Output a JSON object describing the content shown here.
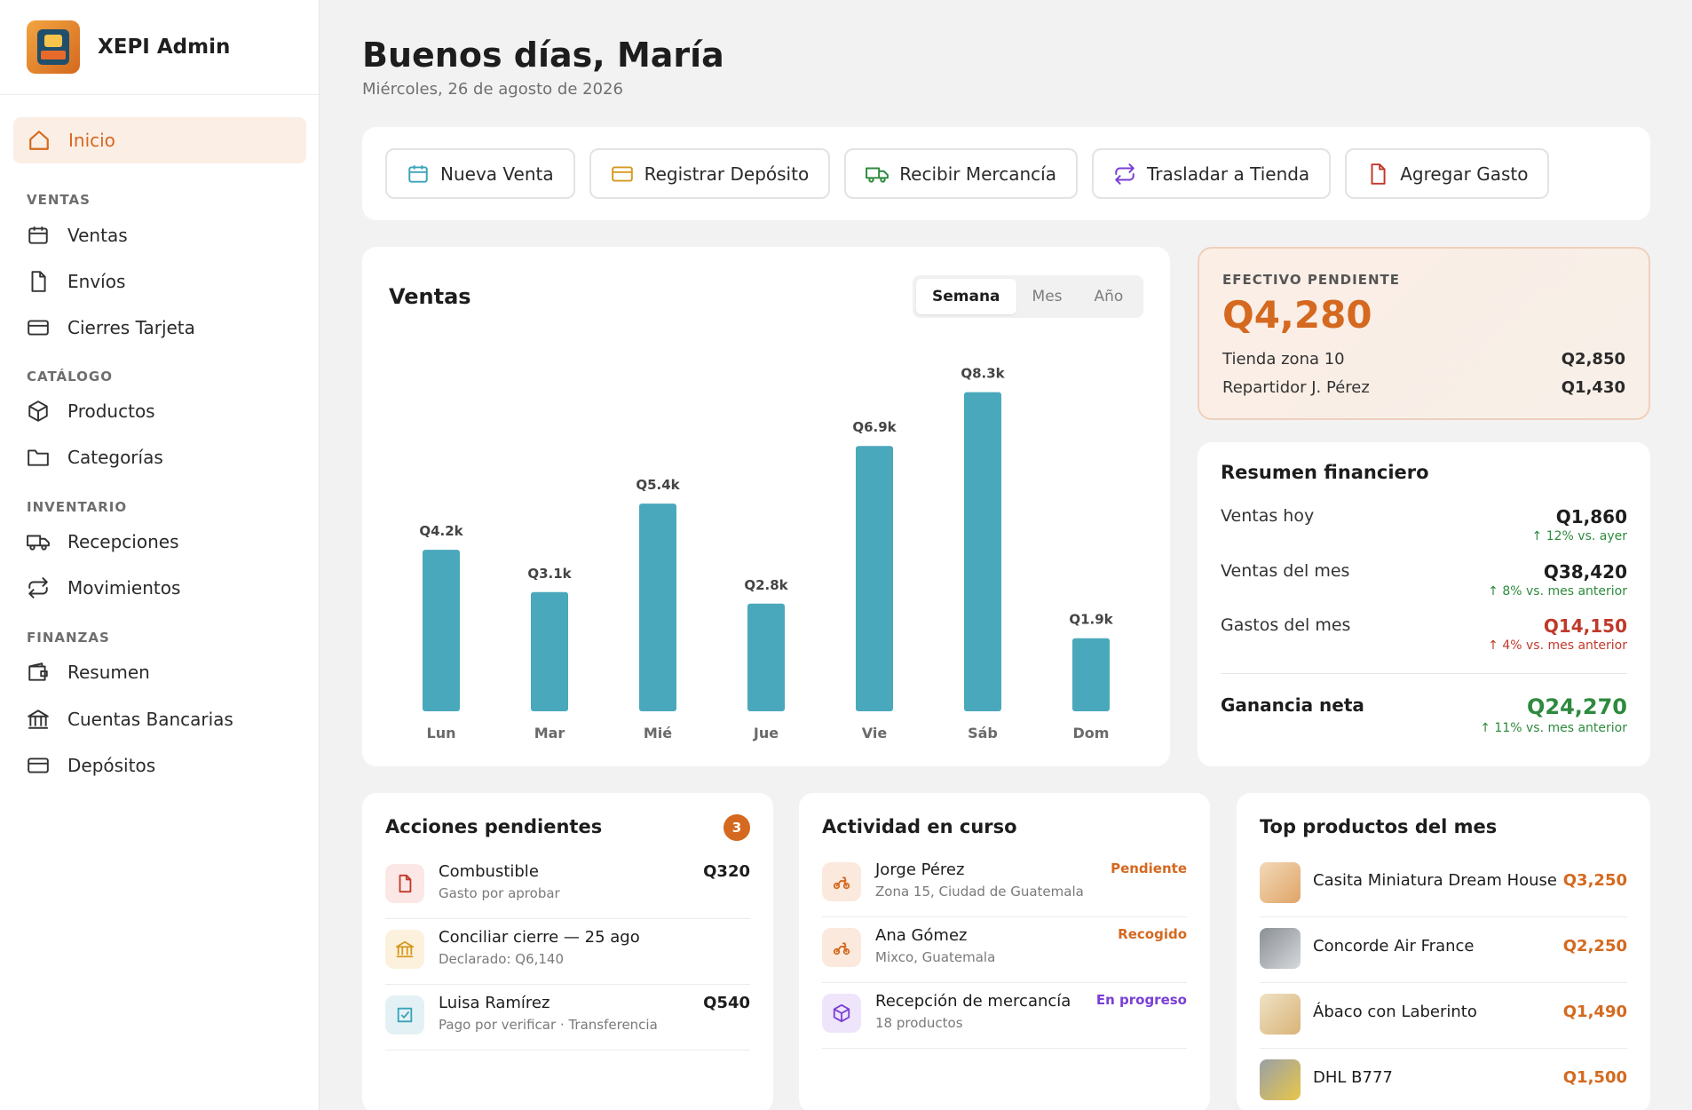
{
  "brand": {
    "name": "XEPI Admin",
    "logo_text": "XEPI"
  },
  "sidebar": {
    "active": {
      "label": "Inicio",
      "icon": "home-icon"
    },
    "sections": [
      {
        "title": "VENTAS",
        "items": [
          {
            "label": "Ventas",
            "icon": "calendar-icon"
          },
          {
            "label": "Envíos",
            "icon": "file-icon"
          },
          {
            "label": "Cierres Tarjeta",
            "icon": "card-icon"
          }
        ]
      },
      {
        "title": "CATÁLOGO",
        "items": [
          {
            "label": "Productos",
            "icon": "box-icon"
          },
          {
            "label": "Categorías",
            "icon": "folder-icon"
          }
        ]
      },
      {
        "title": "INVENTARIO",
        "items": [
          {
            "label": "Recepciones",
            "icon": "truck-icon"
          },
          {
            "label": "Movimientos",
            "icon": "transfer-icon"
          }
        ]
      },
      {
        "title": "FINANZAS",
        "items": [
          {
            "label": "Resumen",
            "icon": "wallet-icon"
          },
          {
            "label": "Cuentas Bancarias",
            "icon": "bank-icon"
          },
          {
            "label": "Depósitos",
            "icon": "card-icon"
          }
        ]
      }
    ]
  },
  "header": {
    "greeting": "Buenos días, María",
    "date": "Miércoles, 26 de agosto de 2026"
  },
  "quick_actions": [
    {
      "label": "Nueva Venta",
      "icon": "calendar-icon",
      "color": "#3aa3b8"
    },
    {
      "label": "Registrar Depósito",
      "icon": "card-icon",
      "color": "#d49a1f"
    },
    {
      "label": "Recibir Mercancía",
      "icon": "truck-icon",
      "color": "#2e8a3e"
    },
    {
      "label": "Trasladar a Tienda",
      "icon": "transfer-icon",
      "color": "#7a3fd4"
    },
    {
      "label": "Agregar Gasto",
      "icon": "file-icon",
      "color": "#c0392b"
    }
  ],
  "sales_chart": {
    "title": "Ventas",
    "periods": [
      "Semana",
      "Mes",
      "Año"
    ],
    "active_period": "Semana"
  },
  "chart_data": {
    "type": "bar",
    "categories": [
      "Lun",
      "Mar",
      "Mié",
      "Jue",
      "Vie",
      "Sáb",
      "Dom"
    ],
    "values": [
      4.2,
      3.1,
      5.4,
      2.8,
      6.9,
      8.3,
      1.9
    ],
    "data_labels": [
      "Q4.2k",
      "Q3.1k",
      "Q5.4k",
      "Q2.8k",
      "Q6.9k",
      "Q8.3k",
      "Q1.9k"
    ],
    "unit": "Q thousands",
    "ylim": [
      0,
      10
    ],
    "grid": false,
    "color": "#4aa8bc"
  },
  "cash_pending": {
    "label": "EFECTIVO PENDIENTE",
    "amount": "Q4,280",
    "rows": [
      {
        "label": "Tienda zona 10",
        "value": "Q2,850"
      },
      {
        "label": "Repartidor J. Pérez",
        "value": "Q1,430"
      }
    ]
  },
  "financial_summary": {
    "title": "Resumen financiero",
    "rows": [
      {
        "label": "Ventas hoy",
        "value": "Q1,860",
        "delta": "↑ 12% vs. ayer"
      },
      {
        "label": "Ventas del mes",
        "value": "Q38,420",
        "delta": "↑ 8% vs. mes anterior"
      },
      {
        "label": "Gastos del mes",
        "value": "Q14,150",
        "delta": "↑ 4% vs. mes anterior"
      }
    ],
    "net": {
      "label": "Ganancia neta",
      "value": "Q24,270",
      "delta": "↑ 11% vs. mes anterior"
    }
  },
  "pending_actions": {
    "title": "Acciones pendientes",
    "count": "3",
    "items": [
      {
        "title": "Combustible",
        "subtitle": "Gasto por aprobar",
        "amount": "Q320",
        "icon": "file-icon"
      },
      {
        "title": "Conciliar cierre — 25 ago",
        "subtitle": "Declarado: Q6,140",
        "amount": "",
        "icon": "bank-icon"
      },
      {
        "title": "Luisa Ramírez",
        "subtitle": "Pago por verificar · Transferencia",
        "amount": "Q540",
        "icon": "check-square-icon"
      }
    ]
  },
  "activity": {
    "title": "Actividad en curso",
    "items": [
      {
        "title": "Jorge Pérez",
        "subtitle": "Zona 15, Ciudad de Guatemala",
        "status": "Pendiente",
        "status_color": "#d4691f",
        "icon": "scooter-icon"
      },
      {
        "title": "Ana Gómez",
        "subtitle": "Mixco, Guatemala",
        "status": "Recogido",
        "status_color": "#d4691f",
        "icon": "scooter-icon"
      },
      {
        "title": "Recepción de mercancía",
        "subtitle": "18 productos",
        "status": "En progreso",
        "status_color": "#7a3fd4",
        "icon": "box-icon"
      }
    ]
  },
  "top_products": {
    "title": "Top productos del mes",
    "items": [
      {
        "name": "Casita Miniatura Dream House",
        "value": "Q3,250"
      },
      {
        "name": "Concorde Air France",
        "value": "Q2,250"
      },
      {
        "name": "Ábaco con Laberinto",
        "value": "Q1,490"
      },
      {
        "name": "DHL B777",
        "value": "Q1,500"
      }
    ]
  }
}
